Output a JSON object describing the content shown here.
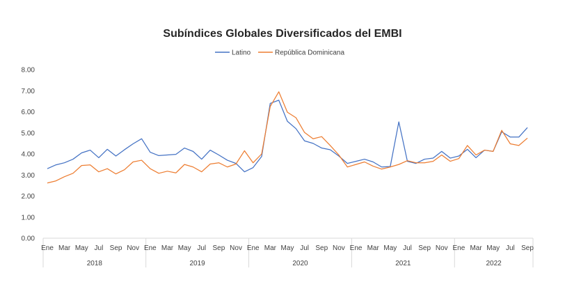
{
  "chart_data": {
    "type": "line",
    "title": "Subíndices Globales Diversificados del EMBI",
    "ylim": [
      0,
      8
    ],
    "y_ticks": [
      "0.00",
      "1.00",
      "2.00",
      "3.00",
      "4.00",
      "5.00",
      "6.00",
      "7.00",
      "8.00"
    ],
    "grid": false,
    "legend_position": "top",
    "years": [
      "2018",
      "2019",
      "2020",
      "2021",
      "2022"
    ],
    "x": [
      "Ene",
      "Feb",
      "Mar",
      "Abr",
      "May",
      "Jun",
      "Jul",
      "Ago",
      "Sep",
      "Oct",
      "Nov",
      "Dic",
      "Ene",
      "Feb",
      "Mar",
      "Abr",
      "May",
      "Jun",
      "Jul",
      "Ago",
      "Sep",
      "Oct",
      "Nov",
      "Dic",
      "Ene",
      "Feb",
      "Mar",
      "Abr",
      "May",
      "Jun",
      "Jul",
      "Ago",
      "Sep",
      "Oct",
      "Nov",
      "Dic",
      "Ene",
      "Feb",
      "Mar",
      "Abr",
      "May",
      "Jun",
      "Jul",
      "Ago",
      "Sep",
      "Oct",
      "Nov",
      "Dic",
      "Ene",
      "Feb",
      "Mar",
      "Abr",
      "May",
      "Jun",
      "Jul",
      "Ago",
      "Sep"
    ],
    "x_tick_labels": [
      "Ene",
      "",
      "Mar",
      "",
      "May",
      "",
      "Jul",
      "",
      "Sep",
      "",
      "Nov",
      "",
      "Ene",
      "",
      "Mar",
      "",
      "May",
      "",
      "Jul",
      "",
      "Sep",
      "",
      "Nov",
      "",
      "Ene",
      "",
      "Mar",
      "",
      "May",
      "",
      "Jul",
      "",
      "Sep",
      "",
      "Nov",
      "",
      "Ene",
      "",
      "Mar",
      "",
      "May",
      "",
      "Jul",
      "",
      "Sep",
      "",
      "Nov",
      "",
      "Ene",
      "",
      "Mar",
      "",
      "May",
      "",
      "Jul",
      "",
      "Sep"
    ],
    "series": [
      {
        "name": "Latino",
        "color": "#4472C4",
        "values": [
          3.3,
          3.48,
          3.58,
          3.75,
          4.05,
          4.18,
          3.82,
          4.22,
          3.9,
          4.2,
          4.48,
          4.72,
          4.08,
          3.92,
          3.95,
          3.98,
          4.28,
          4.12,
          3.75,
          4.18,
          3.95,
          3.7,
          3.55,
          3.15,
          3.35,
          3.88,
          6.4,
          6.55,
          5.55,
          5.2,
          4.62,
          4.5,
          4.28,
          4.2,
          3.9,
          3.55,
          3.65,
          3.75,
          3.62,
          3.38,
          3.4,
          5.52,
          3.65,
          3.55,
          3.75,
          3.8,
          4.12,
          3.8,
          3.9,
          4.22,
          3.82,
          4.18,
          4.12,
          5.05,
          4.8,
          4.8,
          5.25
        ]
      },
      {
        "name": "República Dominicana",
        "color": "#ED7D31",
        "values": [
          2.62,
          2.72,
          2.92,
          3.08,
          3.45,
          3.48,
          3.15,
          3.3,
          3.05,
          3.25,
          3.62,
          3.7,
          3.3,
          3.08,
          3.18,
          3.1,
          3.5,
          3.38,
          3.15,
          3.52,
          3.58,
          3.38,
          3.52,
          4.15,
          3.58,
          4.0,
          6.25,
          6.95,
          5.98,
          5.72,
          5.02,
          4.72,
          4.82,
          4.4,
          3.95,
          3.38,
          3.5,
          3.62,
          3.42,
          3.28,
          3.38,
          3.5,
          3.68,
          3.58,
          3.58,
          3.65,
          3.95,
          3.65,
          3.78,
          4.4,
          3.95,
          4.18,
          4.12,
          5.12,
          4.48,
          4.4,
          4.75
        ]
      }
    ]
  }
}
